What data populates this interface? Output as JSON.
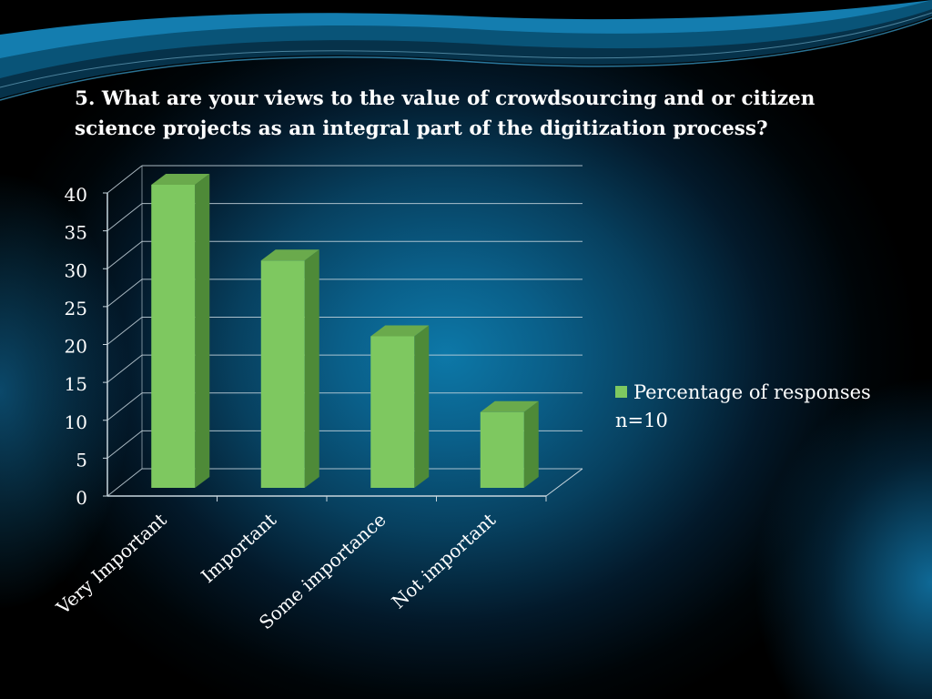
{
  "slide": {
    "title": "5. What are your views to the value of crowdsourcing and or citizen science projects as an integral part of the digitization process?"
  },
  "colors": {
    "bar_front": "#7ec860",
    "bar_side": "#4e8a38",
    "bar_top": "#6aaa4c",
    "gridline": "#c8d6de",
    "text": "#ffffff"
  },
  "chart_data": {
    "type": "bar",
    "categories": [
      "Very Important",
      "Important",
      "Some importance",
      "Not important"
    ],
    "series": [
      {
        "name": "Percentage of responses n=10",
        "values": [
          40,
          30,
          20,
          10
        ]
      }
    ],
    "y_ticks": [
      "0",
      "5",
      "10",
      "15",
      "20",
      "25",
      "30",
      "35",
      "40"
    ],
    "ylim": [
      0,
      40
    ],
    "xlabel": "",
    "ylabel": "",
    "grid": true,
    "style": "3d-column",
    "legend_position": "right"
  },
  "legend": {
    "label": "Percentage of responses n=10"
  }
}
